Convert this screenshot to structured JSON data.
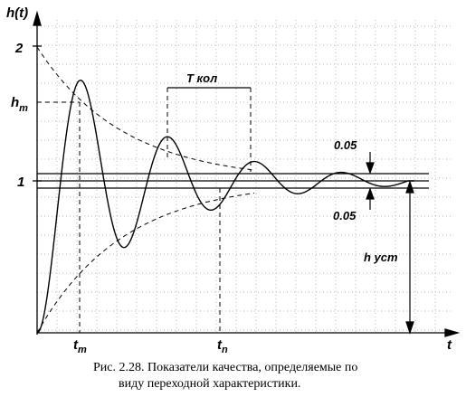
{
  "diagram": {
    "y_axis_label": "h(t)",
    "x_axis_label": "t",
    "y_tick_2": "2",
    "y_tick_hm": "h",
    "y_tick_hm_sub": "m",
    "y_tick_1": "1",
    "t_m_label": "t",
    "t_m_sub": "m",
    "t_n_label": "t",
    "t_n_sub": "n",
    "period_label": "T кол",
    "tolerance_upper": "0.05",
    "tolerance_lower": "0.05",
    "steady_state_label": "h уст"
  },
  "caption": {
    "line1": "Рис. 2.28. Показатели качества, определяемые по",
    "line2": "виду переходной характеристики."
  }
}
